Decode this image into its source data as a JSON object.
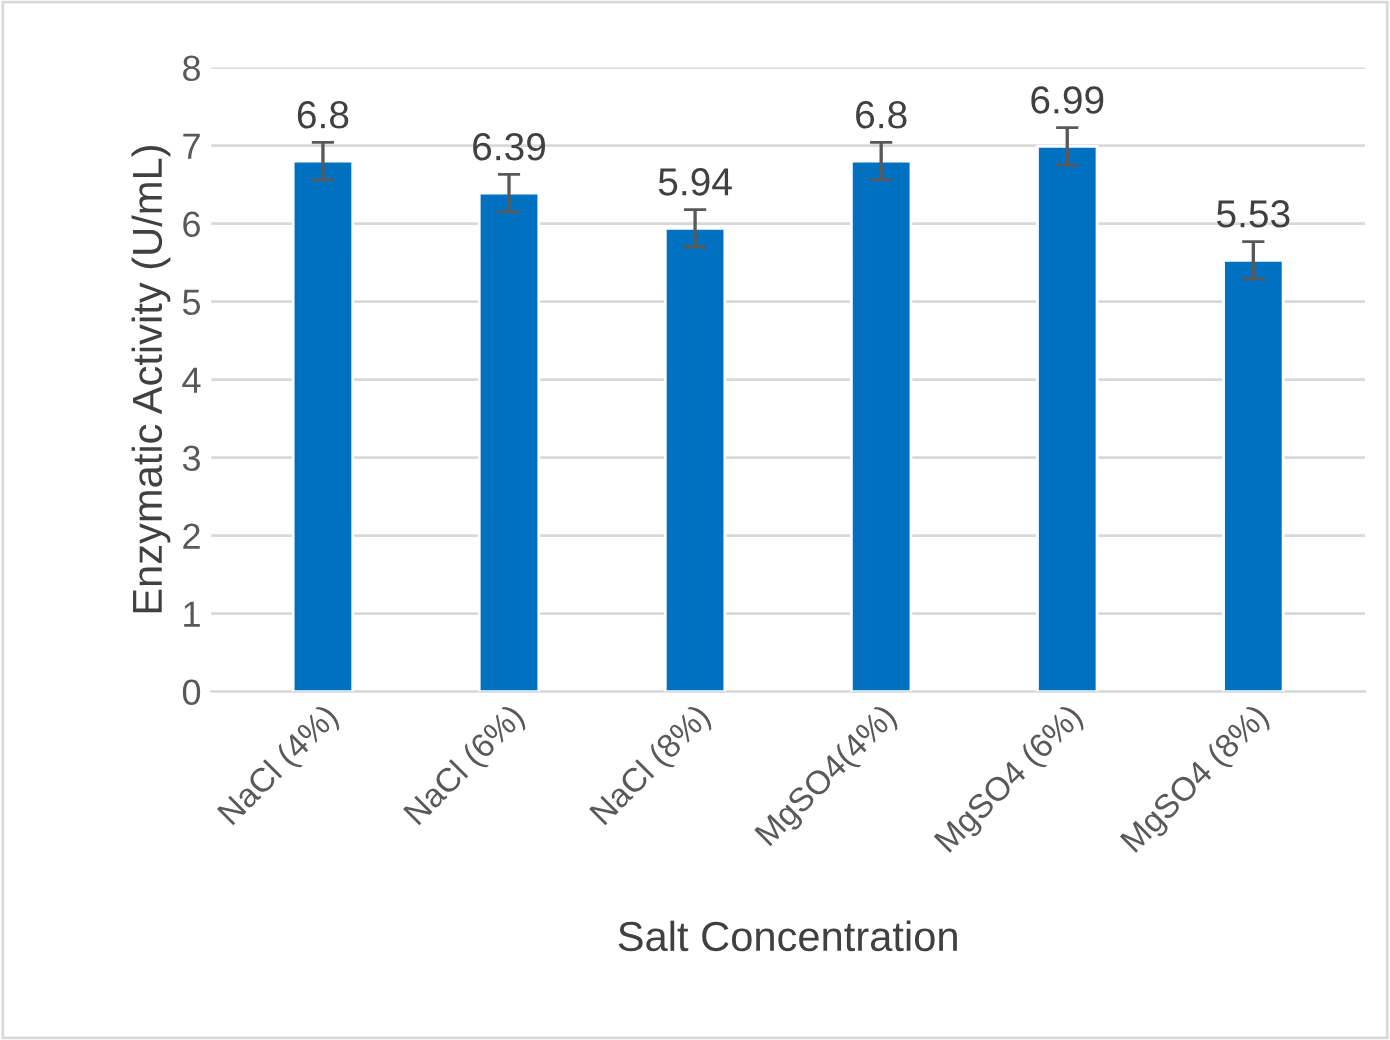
{
  "chart_data": {
    "type": "bar",
    "categories": [
      "NaCl (4%)",
      "NaCl (6%)",
      "NaCl (8%)",
      "MgSO4(4%)",
      "MgSO4 (6%)",
      "MgSO4 (8%)"
    ],
    "values": [
      6.8,
      6.39,
      5.94,
      6.8,
      6.99,
      5.53
    ],
    "errors": [
      0.24,
      0.24,
      0.24,
      0.24,
      0.24,
      0.24
    ],
    "color": "#0070c0",
    "xlabel": "Salt Concentration",
    "ylabel": "Enzymatic Activity (U/mL)",
    "ylim": [
      0,
      8
    ],
    "yticks": [
      0,
      1,
      2,
      3,
      4,
      5,
      6,
      7,
      8
    ],
    "grid": "y",
    "data_labels": true
  }
}
